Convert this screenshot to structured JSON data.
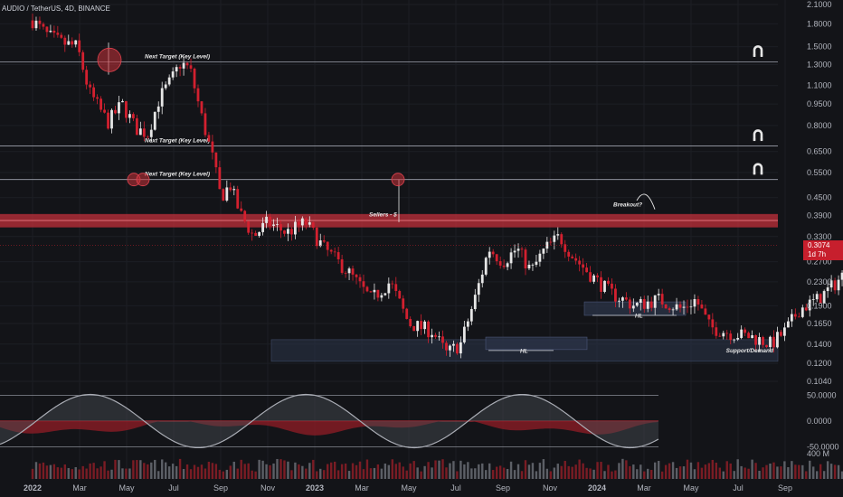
{
  "header": {
    "symbol": "AUDIO / TetherUS, 4D, BINANCE"
  },
  "price_tag": {
    "price": "0.3074",
    "countdown": "1d 7h"
  },
  "colors": {
    "background": "#131418",
    "bull": "#e6e6e6",
    "bear": "#d3202f",
    "resistance": "#c8313b",
    "support": "#2a3246",
    "level_line": "#9ea2ad"
  },
  "chart_data": [
    {
      "type": "candlestick",
      "y_scale": "log",
      "y_ticks": [
        "2.1000",
        "1.8000",
        "1.5000",
        "1.3000",
        "1.1000",
        "0.9500",
        "0.8000",
        "0.6500",
        "0.5500",
        "0.4500",
        "0.3900",
        "0.3300",
        "0.2700",
        "0.2300",
        "0.1900",
        "0.1650",
        "0.1400",
        "0.1200",
        "0.1040"
      ],
      "x_ticks": [
        "2022",
        "Mar",
        "May",
        "Jul",
        "Sep",
        "Nov",
        "2023",
        "Mar",
        "May",
        "Jul",
        "Sep",
        "Nov",
        "2024",
        "Mar",
        "May",
        "Jul",
        "Sep"
      ],
      "series_path": [
        {
          "t": 0,
          "p": 1.85
        },
        {
          "t": 0.3,
          "p": 1.65
        },
        {
          "t": 0.6,
          "p": 1.55
        },
        {
          "t": 0.95,
          "p": 1.5
        },
        {
          "t": 1.2,
          "p": 1.05
        },
        {
          "t": 1.6,
          "p": 0.82
        },
        {
          "t": 1.9,
          "p": 0.95
        },
        {
          "t": 2.2,
          "p": 0.78
        },
        {
          "t": 2.45,
          "p": 0.75
        },
        {
          "t": 2.7,
          "p": 1.0
        },
        {
          "t": 2.95,
          "p": 1.15
        },
        {
          "t": 3.15,
          "p": 1.32
        },
        {
          "t": 3.35,
          "p": 1.25
        },
        {
          "t": 3.6,
          "p": 0.85
        },
        {
          "t": 3.85,
          "p": 0.6
        },
        {
          "t": 4.0,
          "p": 0.45
        },
        {
          "t": 4.2,
          "p": 0.5
        },
        {
          "t": 4.4,
          "p": 0.4
        },
        {
          "t": 4.7,
          "p": 0.33
        },
        {
          "t": 5.0,
          "p": 0.37
        },
        {
          "t": 5.4,
          "p": 0.34
        },
        {
          "t": 5.8,
          "p": 0.37
        },
        {
          "t": 6.2,
          "p": 0.3
        },
        {
          "t": 6.7,
          "p": 0.25
        },
        {
          "t": 7.2,
          "p": 0.2
        },
        {
          "t": 7.6,
          "p": 0.23
        },
        {
          "t": 8.0,
          "p": 0.165
        },
        {
          "t": 8.5,
          "p": 0.155
        },
        {
          "t": 8.8,
          "p": 0.13
        },
        {
          "t": 9.1,
          "p": 0.14
        },
        {
          "t": 9.4,
          "p": 0.2
        },
        {
          "t": 9.7,
          "p": 0.3
        },
        {
          "t": 10.0,
          "p": 0.27
        },
        {
          "t": 10.3,
          "p": 0.3
        },
        {
          "t": 10.6,
          "p": 0.25
        },
        {
          "t": 10.9,
          "p": 0.3
        },
        {
          "t": 11.2,
          "p": 0.33
        },
        {
          "t": 11.5,
          "p": 0.28
        },
        {
          "t": 11.9,
          "p": 0.24
        },
        {
          "t": 12.3,
          "p": 0.21
        },
        {
          "t": 12.8,
          "p": 0.19
        },
        {
          "t": 13.3,
          "p": 0.2
        },
        {
          "t": 13.8,
          "p": 0.185
        },
        {
          "t": 14.1,
          "p": 0.2
        },
        {
          "t": 14.4,
          "p": 0.16
        },
        {
          "t": 14.9,
          "p": 0.152
        },
        {
          "t": 15.3,
          "p": 0.148
        },
        {
          "t": 15.7,
          "p": 0.14
        },
        {
          "t": 16.0,
          "p": 0.155
        },
        {
          "t": 16.3,
          "p": 0.185
        },
        {
          "t": 16.7,
          "p": 0.2
        },
        {
          "t": 17.1,
          "p": 0.23
        },
        {
          "t": 17.4,
          "p": 0.26
        },
        {
          "t": 17.7,
          "p": 0.2
        },
        {
          "t": 18.0,
          "p": 0.19
        },
        {
          "t": 18.3,
          "p": 0.21
        },
        {
          "t": 18.6,
          "p": 0.27
        },
        {
          "t": 18.9,
          "p": 0.33
        },
        {
          "t": 19.05,
          "p": 0.3074
        }
      ],
      "resistance_zone": [
        0.355,
        0.395
      ],
      "levels": [
        {
          "price": 1.33,
          "label": "Next Target (Key Level)"
        },
        {
          "price": 0.68,
          "label": "Next Target (Key Level)"
        },
        {
          "price": 0.52,
          "label": "Next Target (Key Level)"
        }
      ],
      "support_zone": {
        "low": 0.122,
        "high": 0.145,
        "label": "Support/Demand"
      },
      "annotations": {
        "sellers": "Sellers - $",
        "breakout": "Breakout?",
        "higher_low": "HL"
      },
      "projection": [
        {
          "t": 19.0,
          "p": 0.36
        },
        {
          "t": 19.3,
          "p": 0.46
        },
        {
          "t": 19.6,
          "p": 0.38
        },
        {
          "t": 20.0,
          "p": 0.73
        },
        {
          "t": 20.3,
          "p": 0.6
        },
        {
          "t": 20.9,
          "p": 1.35
        }
      ]
    },
    {
      "type": "oscillator",
      "y_ticks": [
        "50.0000",
        "0.0000",
        "-50.0000"
      ],
      "ylim": [
        -60,
        60
      ]
    },
    {
      "type": "bar",
      "name": "Volume",
      "y_ticks": [
        "400 M"
      ]
    }
  ]
}
